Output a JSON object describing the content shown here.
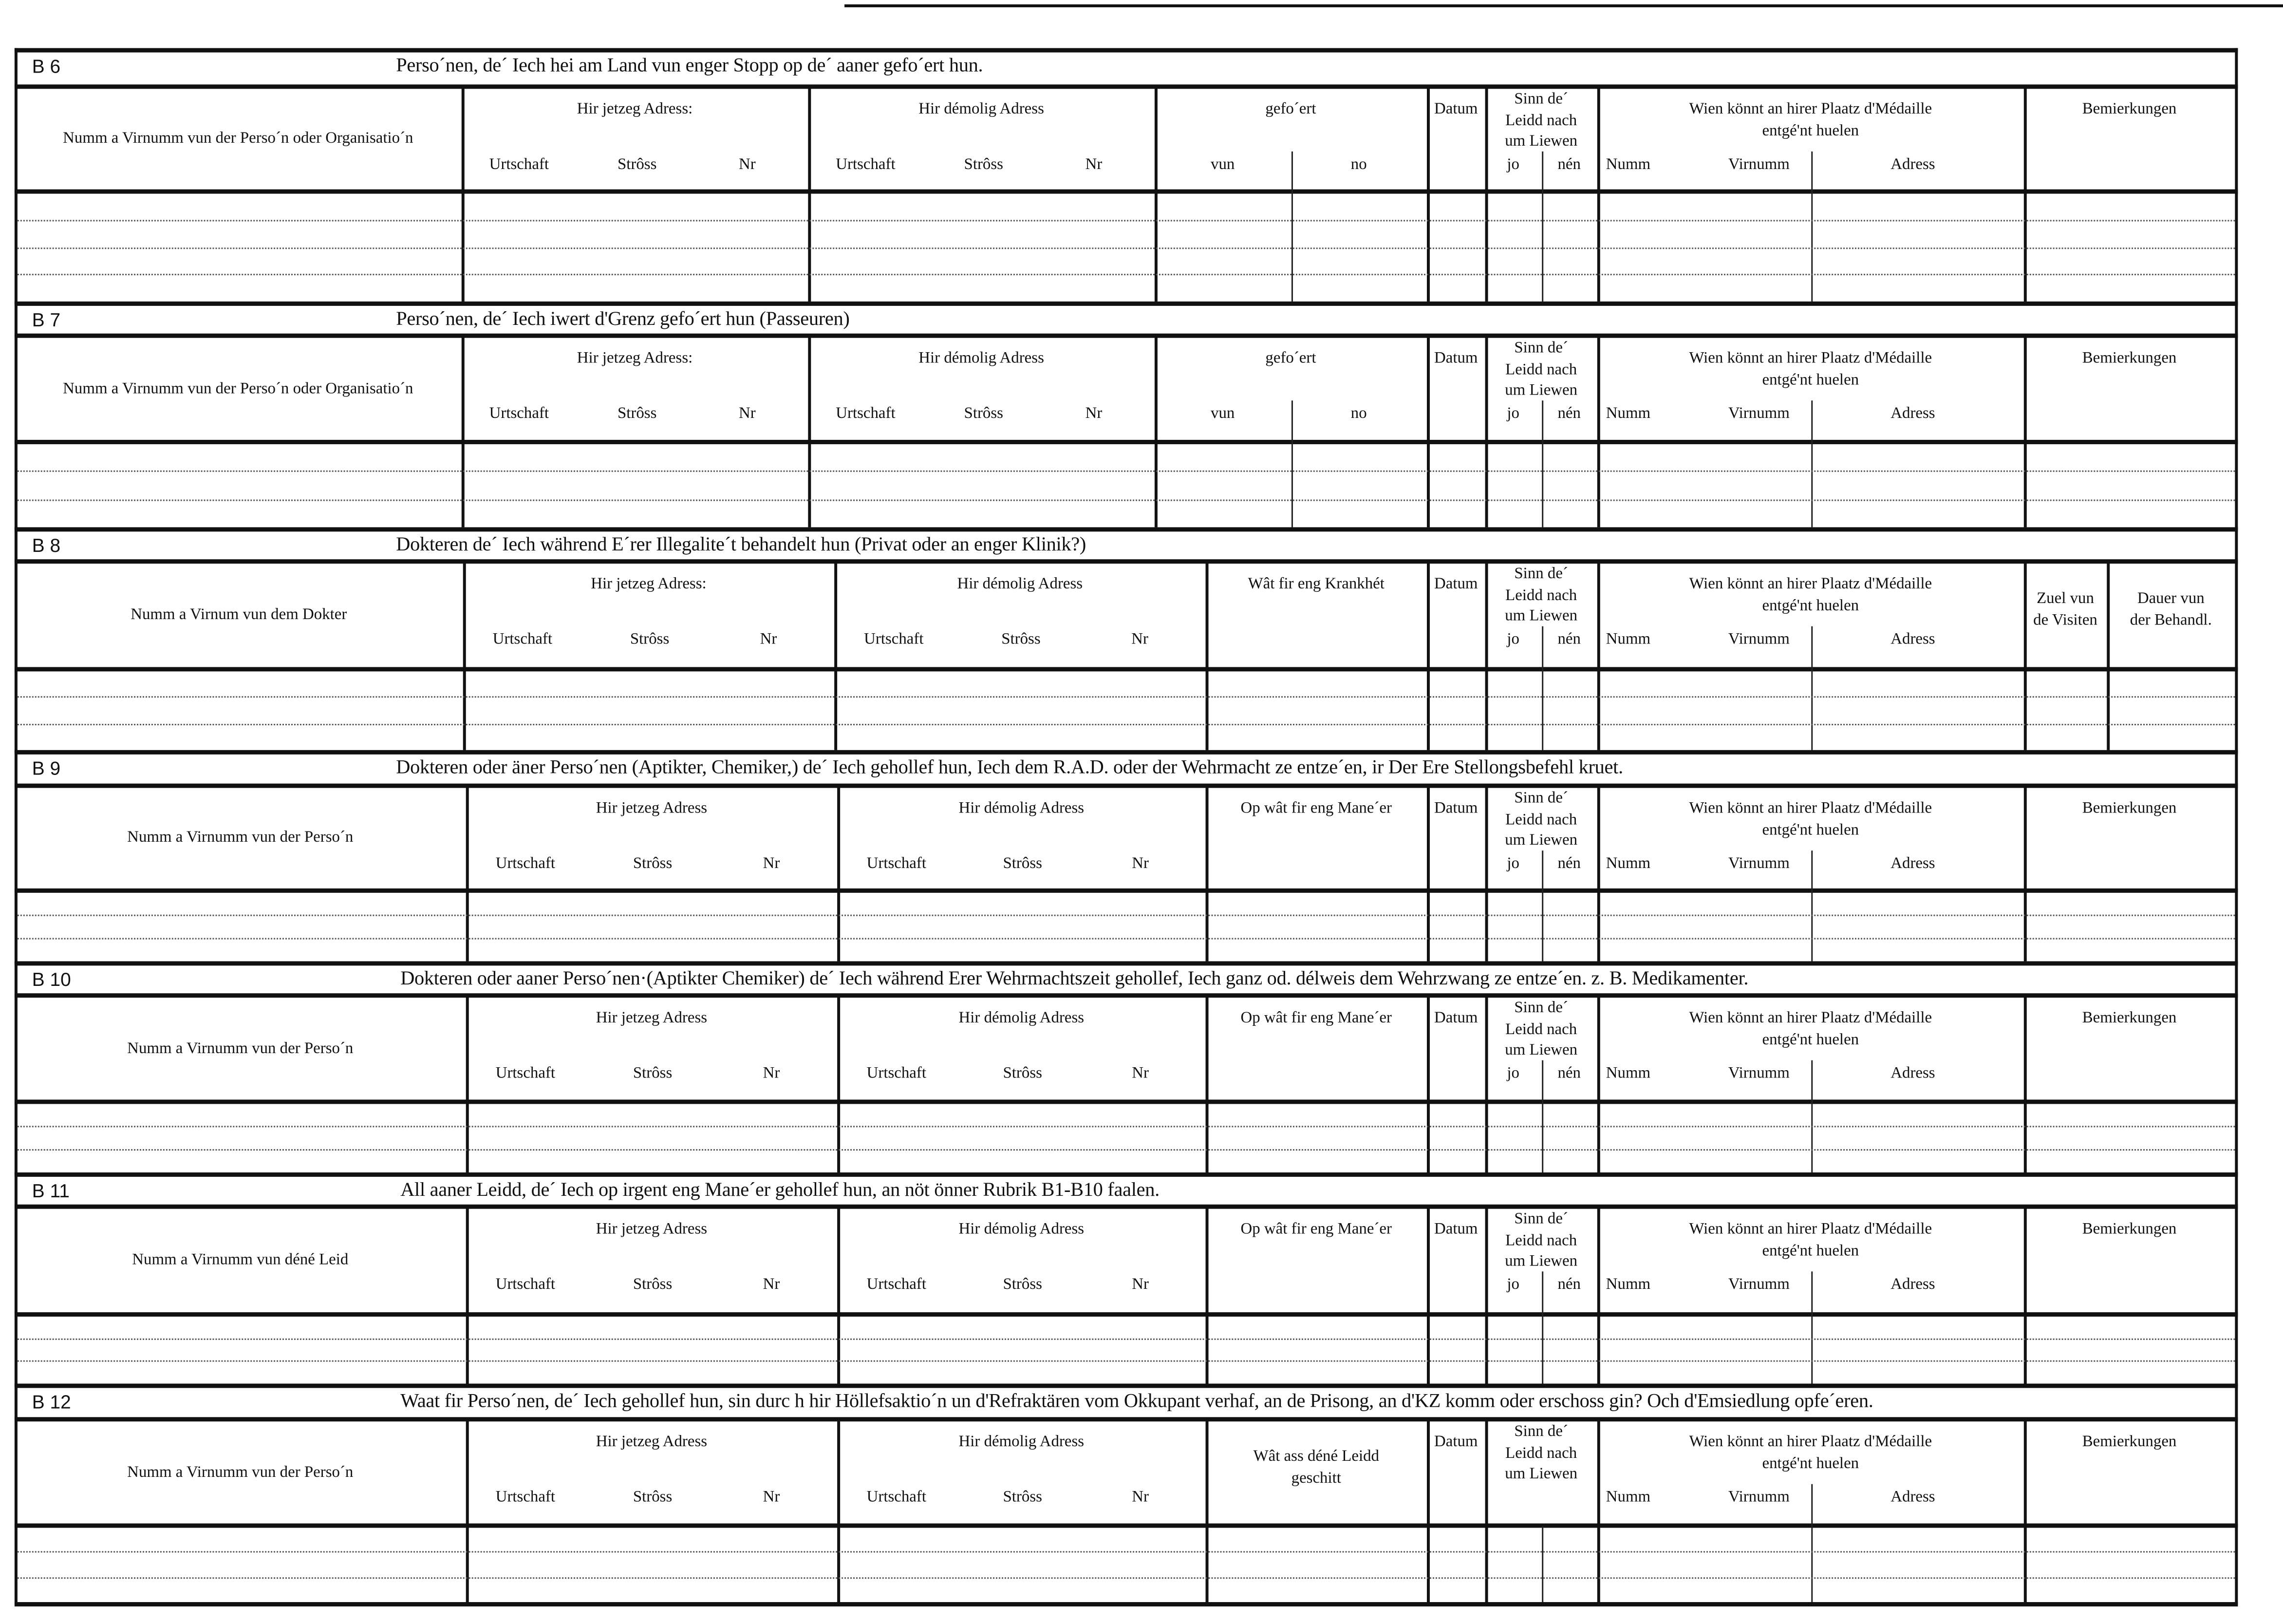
{
  "sections": [
    {
      "code": "B 6",
      "title": "Perso´nen, de´ Iech hei am Land vun enger Stopp  op de´ aaner gefo´ert hun.",
      "layout": "A",
      "rows": 3,
      "columns": [
        {
          "kind": "name",
          "label": "Numm a Virnumm vun der Perso´n oder Organisatio´n"
        },
        {
          "kind": "addr",
          "title": "Hir jetzeg Adress:",
          "sub": [
            "Urtschaft",
            "Strôss",
            "Nr"
          ]
        },
        {
          "kind": "addr",
          "title": "Hir démolig Adress",
          "sub": [
            "Urtschaft",
            "Strôss",
            "Nr"
          ]
        },
        {
          "kind": "split",
          "title": "gefo´ert",
          "sub": [
            "vun",
            "no"
          ]
        },
        {
          "kind": "datum",
          "label": "Datum"
        },
        {
          "kind": "sinn",
          "lines": [
            "Sinn  de´",
            "Leidd   nach",
            "um  Liewen"
          ],
          "sub": [
            "jo",
            "nén"
          ]
        },
        {
          "kind": "wien",
          "lines": [
            "Wien  könnt  an  hirer  Plaatz  d'Médaille",
            "entgé'nt huelen"
          ],
          "sub": [
            "Numm",
            "Virnumm",
            "Adress"
          ]
        },
        {
          "kind": "label",
          "label": "Bemierkungen"
        }
      ]
    },
    {
      "code": "B 7",
      "title": "Perso´nen, de´ Iech iwert d'Grenz  gefo´ert hun  (Passeuren)",
      "layout": "A",
      "rows": 2,
      "columns": [
        {
          "kind": "name",
          "label": "Numm a Virnumm vun der Perso´n oder Organisatio´n"
        },
        {
          "kind": "addr",
          "title": "Hir jetzeg Adress:",
          "sub": [
            "Urtschaft",
            "Strôss",
            "Nr"
          ]
        },
        {
          "kind": "addr",
          "title": "Hir démolig Adress",
          "sub": [
            "Urtschaft",
            "Strôss",
            "Nr"
          ]
        },
        {
          "kind": "split",
          "title": "gefo´ert",
          "sub": [
            "vun",
            "no"
          ]
        },
        {
          "kind": "datum",
          "label": "Datum"
        },
        {
          "kind": "sinn",
          "lines": [
            "Sinn  de´",
            "Leidd   nach",
            "um  Liewen"
          ],
          "sub": [
            "jo",
            "nén"
          ]
        },
        {
          "kind": "wien",
          "lines": [
            "Wien  könnt  an  hirer  Plaatz  d'Médaille",
            "entgé'nt huelen"
          ],
          "sub": [
            "Numm",
            "Virnumm",
            "Adress"
          ]
        },
        {
          "kind": "label",
          "label": "Bemierkungen"
        }
      ]
    },
    {
      "code": "B 8",
      "title": "Dokteren de´ Iech während E´rer Illegalite´t behandelt hun (Privat  oder an enger Klinik?)",
      "layout": "B",
      "rows": 2,
      "columns": [
        {
          "kind": "name",
          "label": "Numm a Virnum vun dem Dokter"
        },
        {
          "kind": "addr",
          "title": "Hir jetzeg Adress:",
          "sub": [
            "Urtschaft",
            "Strôss",
            "Nr"
          ]
        },
        {
          "kind": "addr",
          "title": "Hir démolig Adress",
          "sub": [
            "Urtschaft",
            "Strôss",
            "Nr"
          ]
        },
        {
          "kind": "text",
          "lines": [
            "Wât  fir  eng  Krankhét"
          ]
        },
        {
          "kind": "datum",
          "label": "Datum"
        },
        {
          "kind": "sinn",
          "lines": [
            "Sinn  de´",
            "Leidd   nach",
            "um  Liewen"
          ],
          "sub": [
            "jo",
            "nén"
          ]
        },
        {
          "kind": "wien",
          "lines": [
            "Wien  könnt  an  hirer  Plaatz  d'Médaille",
            "entgé'nt huelen"
          ],
          "sub": [
            "Numm",
            "Virnumm",
            "Adress"
          ]
        },
        {
          "kind": "text2",
          "lines": [
            "Zuel vun",
            "de Visiten"
          ]
        },
        {
          "kind": "text2",
          "lines": [
            "Dauer  vun",
            "der Behandl."
          ]
        }
      ]
    },
    {
      "code": "B 9",
      "title": "Dokteren oder äner Perso´nen (Aptikter, Chemiker,) de´ Iech gehollef hun, Iech dem R.A.D. oder der  Wehrmacht  ze  entze´en,  ir  Der Ere  Stellongsbefehl kruet.",
      "layout": "C",
      "rows": 2,
      "columns": [
        {
          "kind": "name",
          "label": "Numm  a  Virnumm  vun  der  Perso´n"
        },
        {
          "kind": "addr",
          "title": "Hir jetzeg Adress",
          "sub": [
            "Urtschaft",
            "Strôss",
            "Nr"
          ]
        },
        {
          "kind": "addr",
          "title": "Hir démolig Adress",
          "sub": [
            "Urtschaft",
            "Strôss",
            "Nr"
          ]
        },
        {
          "kind": "text",
          "lines": [
            "Op  wât  fir  eng  Mane´er"
          ]
        },
        {
          "kind": "datum",
          "label": "Datum"
        },
        {
          "kind": "sinn",
          "lines": [
            "Sinn  de´",
            "Leidd   nach",
            "um  Liewen"
          ],
          "sub": [
            "jo",
            "nén"
          ]
        },
        {
          "kind": "wien",
          "lines": [
            "Wien  könnt  an  hirer  Plaatz  d'Médaille",
            "entgé'nt huelen"
          ],
          "sub": [
            "Numm",
            "Virnumm",
            "Adress"
          ]
        },
        {
          "kind": "label",
          "label": "Bemierkungen"
        }
      ]
    },
    {
      "code": "B 10",
      "title": "Dokteren oder aaner Perso´nen·(Aptikter Chemiker)  de´ Iech  während  Erer  Wehrmachtszeit  gehollef,  Iech  ganz  od.  délweis  dem  Wehrzwang  ze  entze´en.  z. B.  Medikamenter.",
      "layout": "C",
      "rows": 2,
      "columns": [
        {
          "kind": "name",
          "label": "Numm  a  Virnumm  vun  der  Perso´n"
        },
        {
          "kind": "addr",
          "title": "Hir jetzeg Adress",
          "sub": [
            "Urtschaft",
            "Strôss",
            "Nr"
          ]
        },
        {
          "kind": "addr",
          "title": "Hir démolig Adress",
          "sub": [
            "Urtschaft",
            "Strôss",
            "Nr"
          ]
        },
        {
          "kind": "text",
          "lines": [
            "Op  wât  fir  eng  Mane´er"
          ]
        },
        {
          "kind": "datum",
          "label": "Datum"
        },
        {
          "kind": "sinn",
          "lines": [
            "Sinn  de´",
            "Leidd   nach",
            "um  Liewen"
          ],
          "sub": [
            "jo",
            "nén"
          ]
        },
        {
          "kind": "wien",
          "lines": [
            "Wien  könnt  an  hirer  Plaatz  d'Médaille",
            "entgé'nt huelen"
          ],
          "sub": [
            "Numm",
            "Virnumm",
            "Adress"
          ]
        },
        {
          "kind": "label",
          "label": "Bemierkungen"
        }
      ]
    },
    {
      "code": "B 11",
      "title": "All aaner Leidd, de´ Iech op irgent eng Mane´er  gehollef hun, an nöt önner Rubrik B1-B10 faalen.",
      "layout": "C",
      "rows": 2,
      "columns": [
        {
          "kind": "name",
          "label": "Numm  a  Virnumm  vun  déné  Leid"
        },
        {
          "kind": "addr",
          "title": "Hir jetzeg Adress",
          "sub": [
            "Urtschaft",
            "Strôss",
            "Nr"
          ]
        },
        {
          "kind": "addr",
          "title": "Hir démolig Adress",
          "sub": [
            "Urtschaft",
            "Strôss",
            "Nr"
          ]
        },
        {
          "kind": "text",
          "lines": [
            "Op  wât  fir  eng  Mane´er"
          ]
        },
        {
          "kind": "datum",
          "label": "Datum"
        },
        {
          "kind": "sinn",
          "lines": [
            "Sinn  de´",
            "Leidd   nach",
            "um  Liewen"
          ],
          "sub": [
            "jo",
            "nén"
          ]
        },
        {
          "kind": "wien",
          "lines": [
            "Wien  könnt  an  hirer  Plaatz  d'Médaille",
            "entgé'nt huelen"
          ],
          "sub": [
            "Numm",
            "Virnumm",
            "Adress"
          ]
        },
        {
          "kind": "label",
          "label": "Bemierkungen"
        }
      ]
    },
    {
      "code": "B 12",
      "title": "Waat fir Perso´nen, de´ Iech gehollef hun, sin durc h hir Höllefsaktio´n un d'Refraktären vom Okkupant verhaf, an de Prisong, an d'KZ komm oder  erschoss gin? Och d'Emsiedlung opfe´eren.",
      "layout": "C",
      "rows": 2,
      "columns": [
        {
          "kind": "name",
          "label": "Numm  a  Virnumm  vun  der  Perso´n"
        },
        {
          "kind": "addr",
          "title": "Hir jetzeg Adress",
          "sub": [
            "Urtschaft",
            "Strôss",
            "Nr"
          ]
        },
        {
          "kind": "addr",
          "title": "Hir démolig Adress",
          "sub": [
            "Urtschaft",
            "Strôss",
            "Nr"
          ]
        },
        {
          "kind": "text",
          "lines": [
            "Wât  ass  déné  Leidd",
            "geschitt"
          ]
        },
        {
          "kind": "datum",
          "label": "Datum"
        },
        {
          "kind": "sinn",
          "lines": [
            "Sinn  de´",
            "Leidd   nach",
            "um  Liewen"
          ],
          "sub": []
        },
        {
          "kind": "wien",
          "lines": [
            "Wien  könnt  an  hirer  Plaatz  d'Médaille",
            "entgé'nt huelen"
          ],
          "sub": [
            "Numm",
            "Virnumm",
            "Adress"
          ]
        },
        {
          "kind": "label",
          "label": "Bemierkungen"
        }
      ]
    }
  ]
}
